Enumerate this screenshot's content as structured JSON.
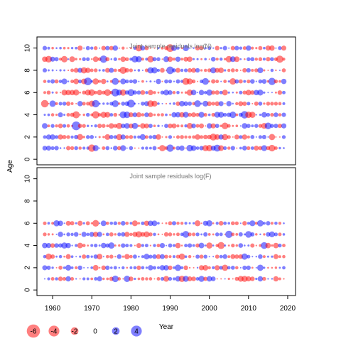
{
  "chart_data": {
    "type": "scatter",
    "subtype": "bubble-residuals",
    "ylabel": "Age",
    "xlabel": "Year",
    "x_ticks": [
      1960,
      1970,
      1980,
      1990,
      2000,
      2010,
      2020
    ],
    "xlim": [
      1956,
      2022
    ],
    "colors": {
      "positive": "#0000ff",
      "negative": "#ff0000"
    },
    "panels": [
      {
        "title": "Joint sample residuals log(N)",
        "ylim": [
          -0.5,
          11
        ],
        "y_ticks": [
          0,
          2,
          4,
          6,
          8,
          10
        ],
        "ages": [
          1,
          2,
          3,
          4,
          5,
          6,
          7,
          8,
          9,
          10
        ],
        "years": [
          1958,
          2019
        ]
      },
      {
        "title": "Joint sample residuals log(F)",
        "ylim": [
          -0.5,
          11
        ],
        "y_ticks": [
          0,
          2,
          4,
          6,
          8,
          10
        ],
        "ages": [
          1,
          2,
          3,
          4,
          5,
          6
        ],
        "years": [
          1958,
          2019
        ]
      }
    ],
    "legend": {
      "position": "bottom-left",
      "values": [
        -6,
        -4,
        -2,
        0,
        2,
        4
      ],
      "labels": [
        "-6",
        "-4",
        "-2",
        "0",
        "2",
        "4"
      ]
    }
  }
}
